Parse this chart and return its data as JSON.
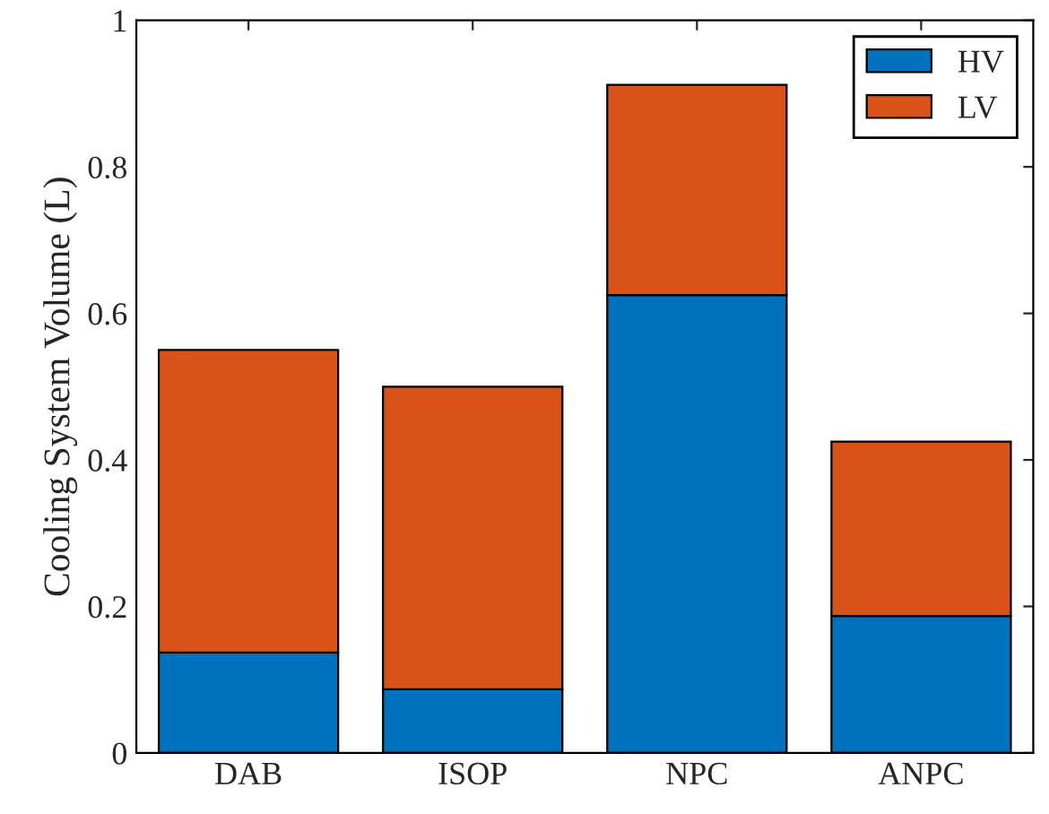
{
  "chart_data": {
    "type": "bar",
    "ylabel": "Cooling System Volume (L)",
    "categories": [
      "DAB",
      "ISOP",
      "NPC",
      "ANPC"
    ],
    "stacked": true,
    "series": [
      {
        "name": "HV",
        "color": "#0072bd",
        "values": [
          0.137,
          0.087,
          0.625,
          0.187
        ]
      },
      {
        "name": "LV",
        "color": "#d95319",
        "values": [
          0.413,
          0.413,
          0.287,
          0.238
        ]
      }
    ],
    "ylim": [
      0,
      1
    ],
    "yticks": [
      0,
      {
        "value": 0.2,
        "label": "0.2"
      },
      {
        "value": 0.4,
        "label": "0.4"
      },
      {
        "value": 0.6,
        "label": "0.6"
      },
      {
        "value": 0.8,
        "label": "0.8"
      },
      1
    ],
    "legend": "top right",
    "grid": false
  }
}
